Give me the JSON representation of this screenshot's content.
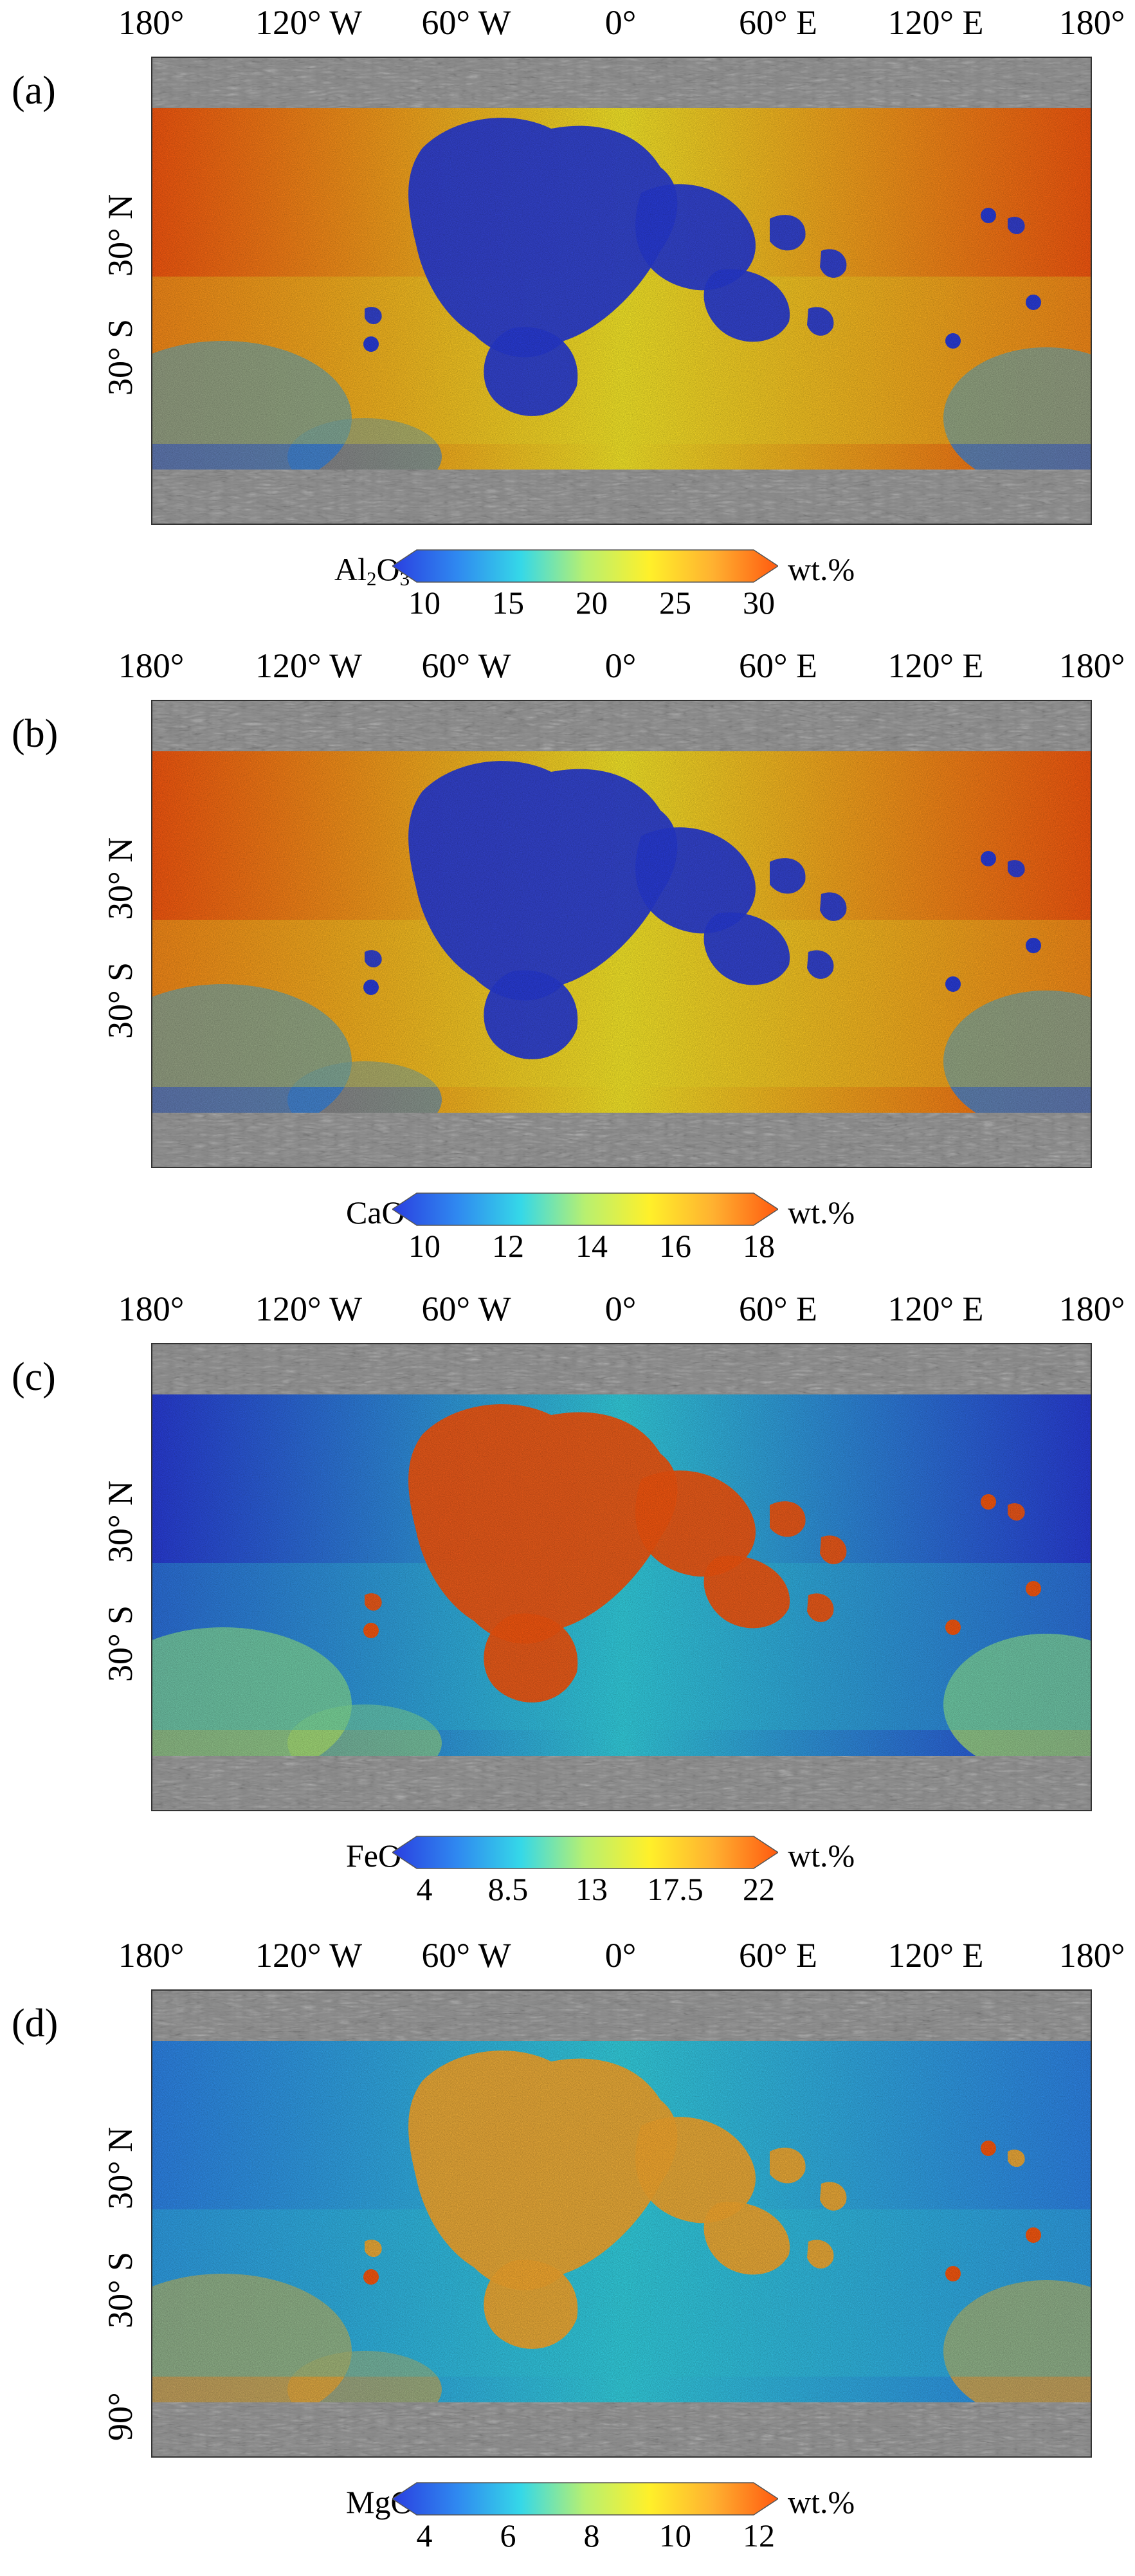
{
  "colors": {
    "scale": [
      "#2a3ee0",
      "#2f88f0",
      "#35d8e8",
      "#b8f070",
      "#fff02a",
      "#ffb030",
      "#ff5a10"
    ],
    "highlands_default": "#f49a30",
    "mare_default": "#2a48e0",
    "polar_gray": "#8a8a8a"
  },
  "longitude_labels": [
    "180°",
    "120° W",
    "60° W",
    "0°",
    "60° E",
    "120° E",
    "180°"
  ],
  "panels": [
    {
      "panel_label": "(a)",
      "lat_labels": [
        "30° N",
        "30° S"
      ],
      "colorbar": {
        "name_parts": [
          "Al",
          "2",
          "O",
          "3"
        ],
        "ticks": [
          "10",
          "15",
          "20",
          "25",
          "30"
        ],
        "unit": "wt.%"
      },
      "scheme": "highland-high"
    },
    {
      "panel_label": "(b)",
      "lat_labels": [
        "30° N",
        "30° S"
      ],
      "colorbar": {
        "name_parts": [
          "CaO"
        ],
        "ticks": [
          "10",
          "12",
          "14",
          "16",
          "18"
        ],
        "unit": "wt.%"
      },
      "scheme": "highland-high"
    },
    {
      "panel_label": "(c)",
      "lat_labels": [
        "30° N",
        "30° S"
      ],
      "colorbar": {
        "name_parts": [
          "FeO"
        ],
        "ticks": [
          "4",
          "8.5",
          "13",
          "17.5",
          "22"
        ],
        "unit": "wt.%"
      },
      "scheme": "mare-high"
    },
    {
      "panel_label": "(d)",
      "lat_labels": [
        "30° N",
        "30° S",
        "90°"
      ],
      "colorbar": {
        "name_parts": [
          "MgO"
        ],
        "ticks": [
          "4",
          "6",
          "8",
          "10",
          "12"
        ],
        "unit": "wt.%"
      },
      "scheme": "mare-orange"
    }
  ]
}
